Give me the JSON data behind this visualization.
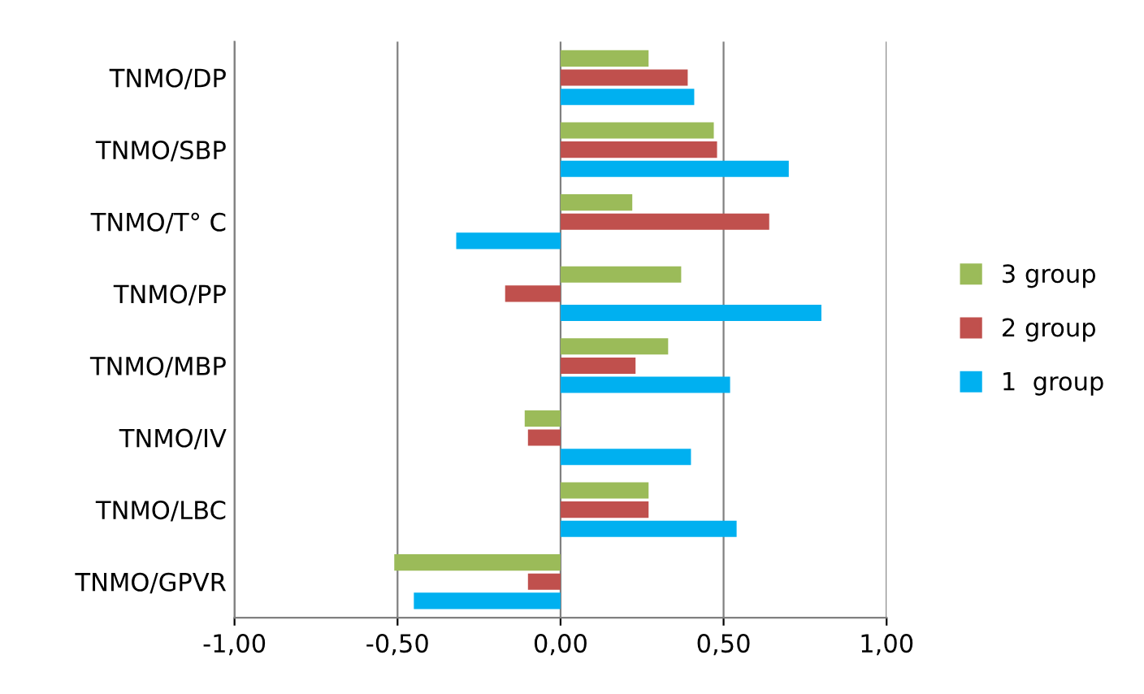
{
  "chart_data": {
    "type": "bar",
    "orientation": "horizontal",
    "categories": [
      "TNMO/DP",
      "TNMO/SBP",
      "TNMO/T° C",
      "TNMO/PP",
      "TNMO/MBP",
      "TNMO/IV",
      "TNMO/LBC",
      "TNMO/GPVR"
    ],
    "series": [
      {
        "name": "3 group",
        "color": "#9bbb59",
        "values": [
          0.27,
          0.47,
          0.22,
          0.37,
          0.33,
          -0.11,
          0.27,
          -0.51
        ]
      },
      {
        "name": "2 group",
        "color": "#c0504d",
        "values": [
          0.39,
          0.48,
          0.64,
          -0.17,
          0.23,
          -0.1,
          0.27,
          -0.1
        ]
      },
      {
        "name": "1  group",
        "color": "#00b0f0",
        "values": [
          0.41,
          0.7,
          -0.32,
          0.8,
          0.52,
          0.4,
          0.54,
          -0.45
        ]
      }
    ],
    "xlim": [
      -1,
      1
    ],
    "xticks": [
      {
        "value": -1,
        "label": "-1,00"
      },
      {
        "value": -0.5,
        "label": "-0,50"
      },
      {
        "value": 0,
        "label": "0,00"
      },
      {
        "value": 0.5,
        "label": "0,50"
      },
      {
        "value": 1,
        "label": "1,00"
      }
    ],
    "grid": "x",
    "legend": "right"
  }
}
